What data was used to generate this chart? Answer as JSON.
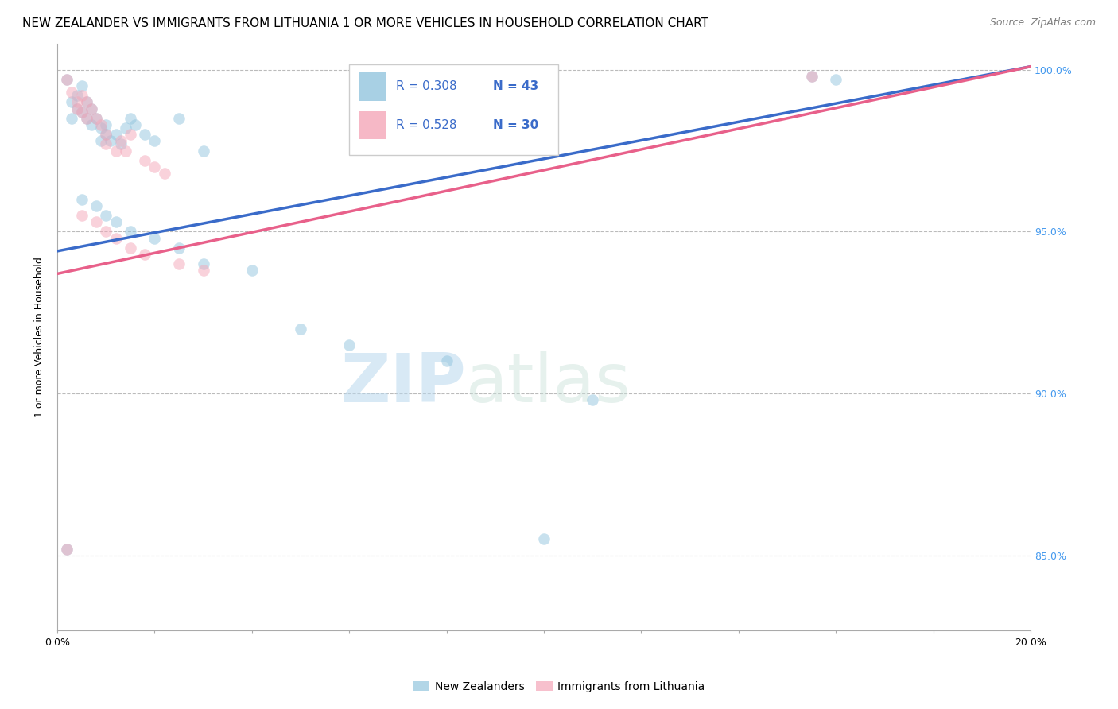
{
  "title": "NEW ZEALANDER VS IMMIGRANTS FROM LITHUANIA 1 OR MORE VEHICLES IN HOUSEHOLD CORRELATION CHART",
  "source": "Source: ZipAtlas.com",
  "ylabel": "1 or more Vehicles in Household",
  "xlim": [
    0.0,
    0.2
  ],
  "ylim": [
    0.827,
    1.008
  ],
  "yticks": [
    0.85,
    0.9,
    0.95,
    1.0
  ],
  "yticklabels": [
    "85.0%",
    "90.0%",
    "95.0%",
    "100.0%"
  ],
  "blue_color": "#92c5de",
  "pink_color": "#f4a6b8",
  "blue_line_color": "#3a6bc9",
  "pink_line_color": "#e8608a",
  "legend_blue_r": "R = 0.308",
  "legend_blue_n": "N = 43",
  "legend_pink_r": "R = 0.528",
  "legend_pink_n": "N = 30",
  "watermark_zip": "ZIP",
  "watermark_atlas": "atlas",
  "blue_scatter": [
    [
      0.002,
      0.997
    ],
    [
      0.003,
      0.99
    ],
    [
      0.003,
      0.985
    ],
    [
      0.004,
      0.992
    ],
    [
      0.004,
      0.988
    ],
    [
      0.005,
      0.995
    ],
    [
      0.005,
      0.987
    ],
    [
      0.006,
      0.99
    ],
    [
      0.006,
      0.985
    ],
    [
      0.007,
      0.988
    ],
    [
      0.007,
      0.983
    ],
    [
      0.008,
      0.985
    ],
    [
      0.009,
      0.982
    ],
    [
      0.009,
      0.978
    ],
    [
      0.01,
      0.983
    ],
    [
      0.01,
      0.98
    ],
    [
      0.011,
      0.978
    ],
    [
      0.012,
      0.98
    ],
    [
      0.013,
      0.977
    ],
    [
      0.014,
      0.982
    ],
    [
      0.015,
      0.985
    ],
    [
      0.016,
      0.983
    ],
    [
      0.018,
      0.98
    ],
    [
      0.02,
      0.978
    ],
    [
      0.025,
      0.985
    ],
    [
      0.03,
      0.975
    ],
    [
      0.005,
      0.96
    ],
    [
      0.008,
      0.958
    ],
    [
      0.01,
      0.955
    ],
    [
      0.012,
      0.953
    ],
    [
      0.015,
      0.95
    ],
    [
      0.02,
      0.948
    ],
    [
      0.025,
      0.945
    ],
    [
      0.03,
      0.94
    ],
    [
      0.04,
      0.938
    ],
    [
      0.05,
      0.92
    ],
    [
      0.06,
      0.915
    ],
    [
      0.08,
      0.91
    ],
    [
      0.11,
      0.898
    ],
    [
      0.002,
      0.852
    ],
    [
      0.1,
      0.855
    ],
    [
      0.155,
      0.998
    ],
    [
      0.16,
      0.997
    ]
  ],
  "pink_scatter": [
    [
      0.002,
      0.997
    ],
    [
      0.003,
      0.993
    ],
    [
      0.004,
      0.99
    ],
    [
      0.004,
      0.988
    ],
    [
      0.005,
      0.992
    ],
    [
      0.005,
      0.987
    ],
    [
      0.006,
      0.99
    ],
    [
      0.006,
      0.985
    ],
    [
      0.007,
      0.988
    ],
    [
      0.008,
      0.985
    ],
    [
      0.009,
      0.983
    ],
    [
      0.01,
      0.98
    ],
    [
      0.01,
      0.977
    ],
    [
      0.012,
      0.975
    ],
    [
      0.013,
      0.978
    ],
    [
      0.014,
      0.975
    ],
    [
      0.015,
      0.98
    ],
    [
      0.018,
      0.972
    ],
    [
      0.02,
      0.97
    ],
    [
      0.022,
      0.968
    ],
    [
      0.005,
      0.955
    ],
    [
      0.008,
      0.953
    ],
    [
      0.01,
      0.95
    ],
    [
      0.012,
      0.948
    ],
    [
      0.015,
      0.945
    ],
    [
      0.018,
      0.943
    ],
    [
      0.025,
      0.94
    ],
    [
      0.03,
      0.938
    ],
    [
      0.002,
      0.852
    ],
    [
      0.155,
      0.998
    ]
  ],
  "blue_line_x": [
    0.0,
    0.2
  ],
  "blue_line_y": [
    0.944,
    1.001
  ],
  "pink_line_x": [
    0.0,
    0.2
  ],
  "pink_line_y": [
    0.937,
    1.001
  ],
  "title_fontsize": 11,
  "source_fontsize": 9,
  "label_fontsize": 9,
  "tick_fontsize": 9,
  "scatter_size": 110,
  "scatter_alpha": 0.5,
  "line_width": 2.5,
  "grid_color": "#bbbbbb",
  "grid_linestyle": "--",
  "background_color": "#ffffff"
}
